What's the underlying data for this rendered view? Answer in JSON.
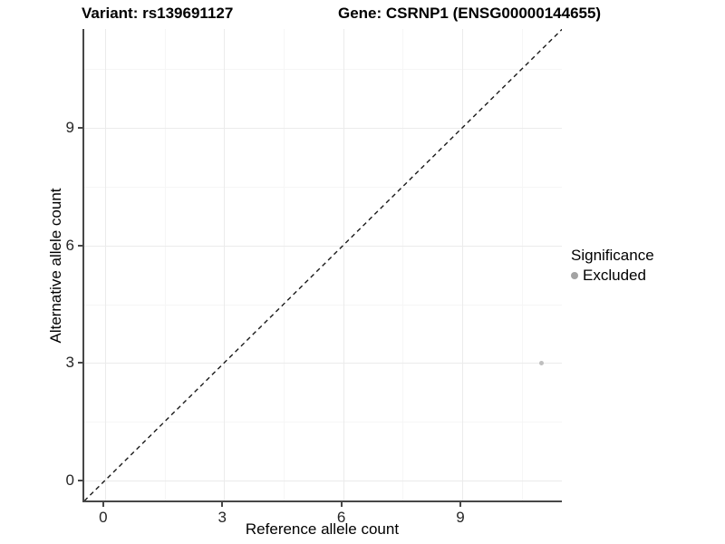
{
  "chart_data": {
    "type": "scatter",
    "title_variant": "Variant: rs139691127",
    "title_gene": "Gene: CSRNP1 (ENSG00000144655)",
    "xlabel": "Reference allele count",
    "ylabel": "Alternative allele count",
    "x_ticks": [
      "0",
      "3",
      "6",
      "9"
    ],
    "y_ticks": [
      "0",
      "3",
      "6",
      "9"
    ],
    "x_tick_values": [
      0,
      3,
      6,
      9
    ],
    "y_tick_values": [
      0,
      3,
      6,
      9
    ],
    "xlim": [
      -0.55,
      11.55
    ],
    "ylim": [
      -0.55,
      11.55
    ],
    "grid": {
      "major": true,
      "minor": true
    },
    "reference_line": {
      "kind": "identity y=x",
      "style": "dashed",
      "color": "#1a1a1a"
    },
    "series": [
      {
        "name": "Excluded",
        "color": "#bfbfbf",
        "point_diameter": 5,
        "points": [
          {
            "x": 11,
            "y": 3
          }
        ]
      }
    ],
    "legend": {
      "position": "right",
      "title": "Significance",
      "entries": [
        {
          "label": "Excluded",
          "color": "#a3a3a3"
        }
      ]
    },
    "colors": {
      "grid_major": "#ebebeb",
      "grid_minor": "#f6f6f6",
      "axis_line": "#474747",
      "tick_text": "#262626"
    }
  }
}
